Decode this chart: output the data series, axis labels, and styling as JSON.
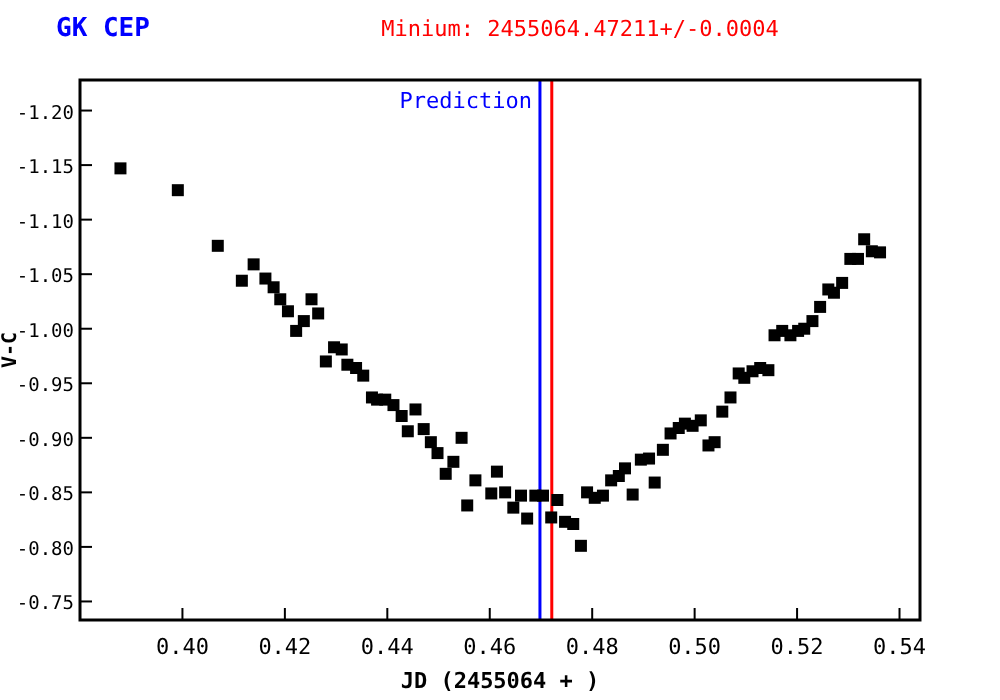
{
  "chart_data": {
    "type": "scatter",
    "title": "GK CEP",
    "subtitle": "Minium: 2455064.47211+/-0.0004",
    "xlabel": "JD (2455064 + )",
    "ylabel": "V-C",
    "x": [
      0.3879,
      0.3991,
      0.4069,
      0.4116,
      0.4139,
      0.4162,
      0.4178,
      0.4191,
      0.4206,
      0.4222,
      0.4237,
      0.4252,
      0.4265,
      0.428,
      0.4296,
      0.4311,
      0.4322,
      0.4339,
      0.4353,
      0.437,
      0.438,
      0.4396,
      0.4412,
      0.4428,
      0.444,
      0.4455,
      0.4471,
      0.4485,
      0.4498,
      0.4514,
      0.4529,
      0.4545,
      0.4556,
      0.4572,
      0.4603,
      0.4614,
      0.463,
      0.4646,
      0.4661,
      0.4673,
      0.4689,
      0.4704,
      0.472,
      0.4732,
      0.4747,
      0.4763,
      0.4778,
      0.479,
      0.4805,
      0.4821,
      0.4837,
      0.4852,
      0.4864,
      0.4879,
      0.4895,
      0.4911,
      0.4922,
      0.4938,
      0.4953,
      0.4969,
      0.4981,
      0.4996,
      0.5012,
      0.5027,
      0.5039,
      0.5054,
      0.507,
      0.5086,
      0.5097,
      0.5113,
      0.5128,
      0.5144,
      0.5156,
      0.5171,
      0.5187,
      0.5202,
      0.5214,
      0.523,
      0.5245,
      0.5261,
      0.5272,
      0.5288,
      0.5304,
      0.5319,
      0.5331,
      0.5346,
      0.5362
    ],
    "series": [
      {
        "color": "#000000",
        "values": [
          -1.147,
          -1.127,
          -1.076,
          -1.044,
          -1.059,
          -1.046,
          -1.038,
          -1.027,
          -1.016,
          -0.998,
          -1.007,
          -1.027,
          -1.014,
          -0.97,
          -0.983,
          -0.981,
          -0.967,
          -0.964,
          -0.957,
          -0.937,
          -0.935,
          -0.935,
          -0.93,
          -0.92,
          -0.906,
          -0.926,
          -0.908,
          -0.896,
          -0.886,
          -0.867,
          -0.878,
          -0.9,
          -0.838,
          -0.861,
          -0.849,
          -0.869,
          -0.85,
          -0.836,
          -0.847,
          -0.826,
          -0.847,
          -0.847,
          -0.827,
          -0.843,
          -0.823,
          -0.821,
          -0.801,
          -0.85,
          -0.845,
          -0.847,
          -0.861,
          -0.865,
          -0.872,
          -0.848,
          -0.88,
          -0.881,
          -0.859,
          -0.889,
          -0.904,
          -0.909,
          -0.913,
          -0.911,
          -0.916,
          -0.893,
          -0.896,
          -0.924,
          -0.937,
          -0.959,
          -0.955,
          -0.961,
          -0.964,
          -0.962,
          -0.994,
          -0.998,
          -0.994,
          -0.998,
          -1.0,
          -1.007,
          -1.02,
          -1.036,
          -1.033,
          -1.042,
          -1.064,
          -1.064,
          -1.082,
          -1.071,
          -1.07
        ]
      }
    ],
    "xlim": [
      0.38,
      0.544
    ],
    "xticks": [
      {
        "value": 0.4,
        "label": "0.40"
      },
      {
        "value": 0.42,
        "label": "0.42"
      },
      {
        "value": 0.44,
        "label": "0.44"
      },
      {
        "value": 0.46,
        "label": "0.46"
      },
      {
        "value": 0.48,
        "label": "0.48"
      },
      {
        "value": 0.5,
        "label": "0.50"
      },
      {
        "value": 0.52,
        "label": "0.52"
      },
      {
        "value": 0.54,
        "label": "0.54"
      }
    ],
    "ylim": [
      -0.733,
      -1.228
    ],
    "yticks": [
      {
        "value": -1.2,
        "label": "-1.20"
      },
      {
        "value": -1.15,
        "label": "-1.15"
      },
      {
        "value": -1.1,
        "label": "-1.10"
      },
      {
        "value": -1.05,
        "label": "-1.05"
      },
      {
        "value": -1.0,
        "label": "-1.00"
      },
      {
        "value": -0.95,
        "label": "-0.95"
      },
      {
        "value": -0.9,
        "label": "-0.90"
      },
      {
        "value": -0.85,
        "label": "-0.85"
      },
      {
        "value": -0.8,
        "label": "-0.80"
      },
      {
        "value": -0.75,
        "label": "-0.75"
      }
    ],
    "ref_lines": [
      {
        "axis": "x",
        "value": 0.4698,
        "label": "Prediction",
        "color": "#0000ff"
      },
      {
        "axis": "x",
        "value": 0.47211,
        "color": "#ff0000"
      }
    ],
    "grid": false,
    "marker": "square"
  }
}
